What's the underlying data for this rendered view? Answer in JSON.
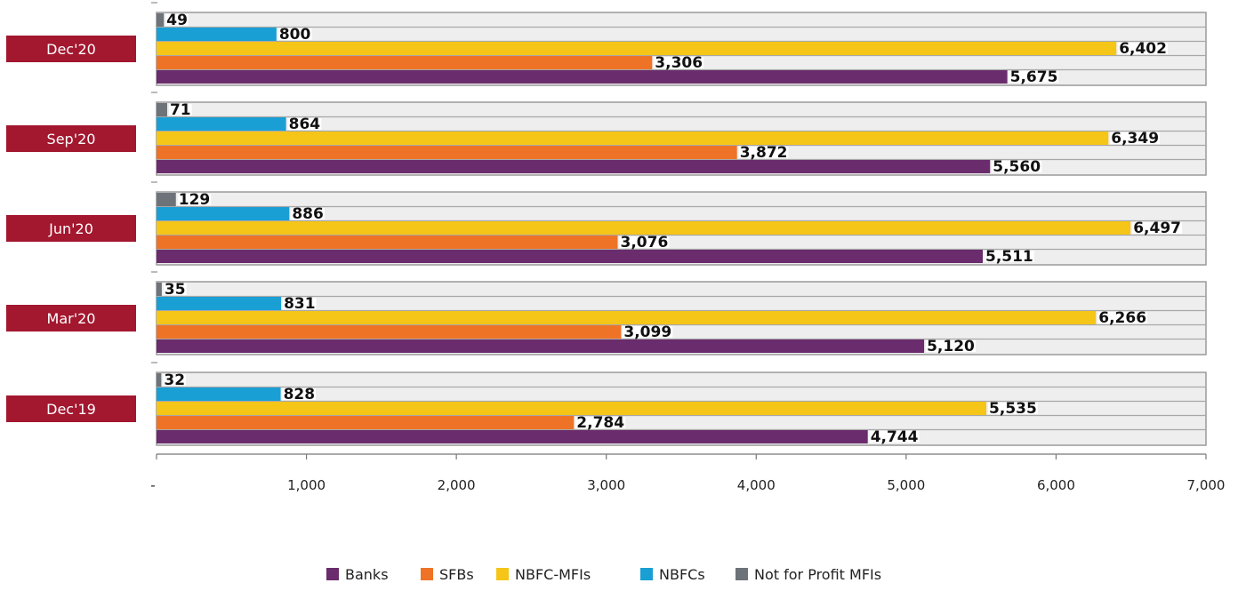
{
  "chart_data": {
    "type": "bar",
    "orientation": "horizontal",
    "categories": [
      "Dec'20",
      "Sep'20",
      "Jun'20",
      "Mar'20",
      "Dec'19"
    ],
    "series": [
      {
        "name": "Not for Profit MFIs",
        "color": "#6d7378",
        "values": [
          49,
          71,
          129,
          35,
          32
        ]
      },
      {
        "name": "NBFCs",
        "color": "#1a9fd5",
        "values": [
          800,
          864,
          886,
          831,
          828
        ]
      },
      {
        "name": "NBFC-MFIs",
        "color": "#f5c518",
        "values": [
          6402,
          6349,
          6497,
          6266,
          5535
        ]
      },
      {
        "name": "SFBs",
        "color": "#ee7326",
        "values": [
          3306,
          3872,
          3076,
          3099,
          2784
        ]
      },
      {
        "name": "Banks",
        "color": "#6a2c6c",
        "values": [
          5675,
          5560,
          5511,
          5120,
          4744
        ]
      }
    ],
    "value_labels": [
      [
        "49",
        "800",
        "6,402",
        "3,306",
        "5,675"
      ],
      [
        "71",
        "864",
        "6,349",
        "3,872",
        "5,560"
      ],
      [
        "129",
        "886",
        "6,497",
        "3,076",
        "5,511"
      ],
      [
        "35",
        "831",
        "6,266",
        "3,099",
        "5,120"
      ],
      [
        "32",
        "828",
        "5,535",
        "2,784",
        "4,744"
      ]
    ],
    "xlim": [
      0,
      7000
    ],
    "x_ticks": [
      0,
      1000,
      2000,
      3000,
      4000,
      5000,
      6000,
      7000
    ],
    "x_tick_labels": [
      "-",
      "1,000",
      "2,000",
      "3,000",
      "4,000",
      "5,000",
      "6,000",
      "7,000"
    ],
    "legend": [
      {
        "label": "Banks",
        "color": "#6a2c6c"
      },
      {
        "label": "SFBs",
        "color": "#ee7326"
      },
      {
        "label": "NBFC-MFIs",
        "color": "#f5c518"
      },
      {
        "label": "NBFCs",
        "color": "#1a9fd5"
      },
      {
        "label": "Not for Profit MFIs",
        "color": "#6d7378"
      }
    ],
    "legend_position": "bottom",
    "category_label_color": "#a3172f",
    "panel_background": "#eeeeee"
  }
}
